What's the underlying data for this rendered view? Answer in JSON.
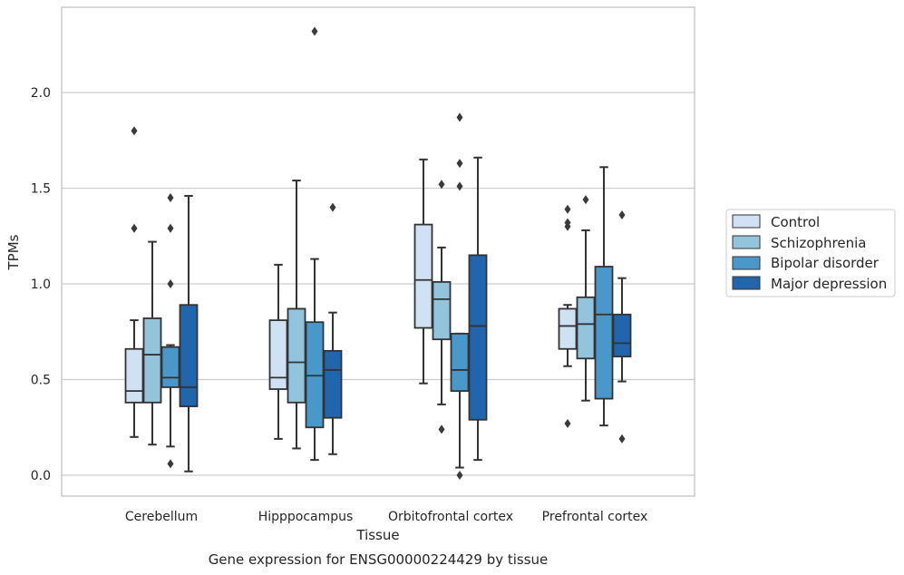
{
  "chart_data": {
    "type": "box",
    "title": "",
    "caption": "Gene expression for ENSG00000224429 by tissue",
    "xlabel": "Tissue",
    "ylabel": "TPMs",
    "ylim": [
      -0.11,
      2.45
    ],
    "yticks": [
      0.0,
      0.5,
      1.0,
      1.5,
      2.0
    ],
    "ytick_labels": [
      "0.0",
      "0.5",
      "1.0",
      "1.5",
      "2.0"
    ],
    "grid": "horizontal",
    "legend_position": "right",
    "categories": [
      "Cerebellum",
      "Hipppocampus",
      "Orbitofrontal cortex",
      "Prefrontal cortex"
    ],
    "series": [
      {
        "name": "Control",
        "color": "#cfe1f2",
        "boxes": [
          {
            "whislo": 0.2,
            "q1": 0.38,
            "med": 0.44,
            "q3": 0.66,
            "whishi": 0.81,
            "fliers": [
              1.8,
              1.29
            ]
          },
          {
            "whislo": 0.19,
            "q1": 0.45,
            "med": 0.51,
            "q3": 0.81,
            "whishi": 1.1,
            "fliers": []
          },
          {
            "whislo": 0.48,
            "q1": 0.77,
            "med": 1.02,
            "q3": 1.31,
            "whishi": 1.65,
            "fliers": []
          },
          {
            "whislo": 0.57,
            "q1": 0.66,
            "med": 0.78,
            "q3": 0.87,
            "whishi": 0.89,
            "fliers": [
              1.39,
              1.32,
              1.3,
              0.27
            ]
          }
        ]
      },
      {
        "name": "Schizophrenia",
        "color": "#93c4de",
        "boxes": [
          {
            "whislo": 0.16,
            "q1": 0.38,
            "med": 0.63,
            "q3": 0.82,
            "whishi": 1.22,
            "fliers": []
          },
          {
            "whislo": 0.14,
            "q1": 0.38,
            "med": 0.59,
            "q3": 0.87,
            "whishi": 1.54,
            "fliers": []
          },
          {
            "whislo": 0.37,
            "q1": 0.71,
            "med": 0.92,
            "q3": 1.01,
            "whishi": 1.19,
            "fliers": [
              1.52,
              0.24
            ]
          },
          {
            "whislo": 0.39,
            "q1": 0.61,
            "med": 0.79,
            "q3": 0.93,
            "whishi": 1.28,
            "fliers": [
              1.44
            ]
          }
        ]
      },
      {
        "name": "Bipolar disorder",
        "color": "#4a98c9",
        "boxes": [
          {
            "whislo": 0.15,
            "q1": 0.46,
            "med": 0.51,
            "q3": 0.67,
            "whishi": 0.68,
            "fliers": [
              1.45,
              1.29,
              1.0,
              0.06
            ]
          },
          {
            "whislo": 0.08,
            "q1": 0.25,
            "med": 0.52,
            "q3": 0.8,
            "whishi": 1.13,
            "fliers": [
              2.32
            ]
          },
          {
            "whislo": 0.04,
            "q1": 0.44,
            "med": 0.55,
            "q3": 0.74,
            "whishi": 0.74,
            "fliers": [
              1.87,
              1.63,
              1.51,
              0.0
            ]
          },
          {
            "whislo": 0.26,
            "q1": 0.4,
            "med": 0.84,
            "q3": 1.09,
            "whishi": 1.61,
            "fliers": []
          }
        ]
      },
      {
        "name": "Major depression",
        "color": "#2166ac",
        "boxes": [
          {
            "whislo": 0.02,
            "q1": 0.36,
            "med": 0.46,
            "q3": 0.89,
            "whishi": 1.46,
            "fliers": []
          },
          {
            "whislo": 0.11,
            "q1": 0.3,
            "med": 0.55,
            "q3": 0.65,
            "whishi": 0.85,
            "fliers": [
              1.4
            ]
          },
          {
            "whislo": 0.08,
            "q1": 0.29,
            "med": 0.78,
            "q3": 1.15,
            "whishi": 1.66,
            "fliers": []
          },
          {
            "whislo": 0.49,
            "q1": 0.62,
            "med": 0.69,
            "q3": 0.84,
            "whishi": 1.03,
            "fliers": [
              1.36,
              0.19
            ]
          }
        ]
      }
    ]
  }
}
